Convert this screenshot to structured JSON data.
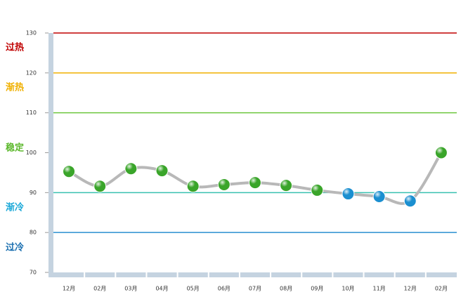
{
  "chart_data": {
    "type": "line",
    "categories": [
      "12月",
      "02月",
      "03月",
      "04月",
      "05月",
      "06月",
      "07月",
      "08月",
      "09月",
      "10月",
      "11月",
      "12月",
      "02月"
    ],
    "series": [
      {
        "color": "#b8b8b8",
        "values": [
          95.3,
          91.6,
          96.0,
          95.5,
          91.6,
          92.0,
          92.5,
          91.8,
          90.6,
          89.7,
          89.0,
          87.9,
          100
        ],
        "point_colors": [
          "#3aa52a",
          "#3aa52a",
          "#3aa52a",
          "#3aa52a",
          "#3aa52a",
          "#3aa52a",
          "#3aa52a",
          "#3aa52a",
          "#3aa52a",
          "#1b8fd0",
          "#1b8fd0",
          "#1b8fd0",
          "#3aa52a"
        ]
      }
    ],
    "ylim": [
      70,
      130
    ],
    "yticks": [
      70,
      80,
      90,
      100,
      110,
      120,
      130
    ],
    "reference_lines": [
      {
        "value": 130,
        "color": "#c00000"
      },
      {
        "value": 120,
        "color": "#f0b000"
      },
      {
        "value": 110,
        "color": "#6cc63c"
      },
      {
        "value": 90,
        "color": "#39c0b0"
      },
      {
        "value": 80,
        "color": "#2a8fd0"
      }
    ],
    "zones": [
      {
        "label": "过热",
        "color": "#c00000"
      },
      {
        "label": "渐热",
        "color": "#f0b000"
      },
      {
        "label": "稳定",
        "color": "#5cb82c"
      },
      {
        "label": "渐冷",
        "color": "#1aa8d8"
      },
      {
        "label": "过冷",
        "color": "#1a6fb0"
      }
    ]
  }
}
